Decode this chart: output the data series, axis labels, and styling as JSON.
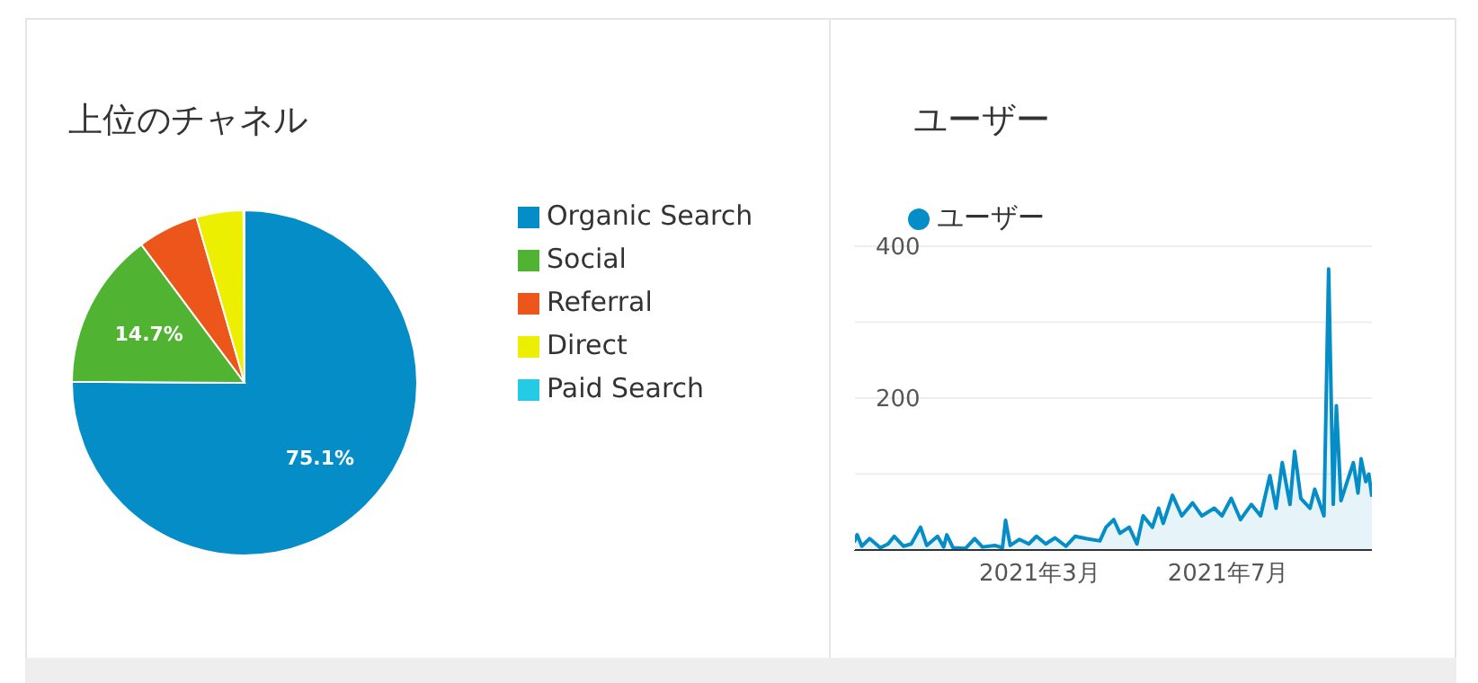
{
  "chart_data": [
    {
      "type": "pie",
      "title": "上位のチャネル",
      "categories": [
        "Organic Search",
        "Social",
        "Referral",
        "Direct",
        "Paid Search"
      ],
      "values": [
        75.1,
        14.7,
        5.7,
        4.4,
        0.1
      ],
      "colors": [
        "#058dc7",
        "#50b432",
        "#ed561b",
        "#edef00",
        "#24cbe5"
      ],
      "value_labels": [
        "75.1%",
        "14.7%",
        null,
        null,
        null
      ],
      "legend": "right"
    },
    {
      "type": "area",
      "title": "ユーザー",
      "x": [
        "2020-11-01",
        "2020-11-03",
        "2020-11-06",
        "2020-11-11",
        "2020-11-18",
        "2020-11-23",
        "2020-11-27",
        "2020-12-03",
        "2020-12-08",
        "2020-12-14",
        "2020-12-18",
        "2020-12-25",
        "2020-12-29",
        "2020-12-31",
        "2021-01-04",
        "2021-01-12",
        "2021-01-18",
        "2021-01-23",
        "2021-01-31",
        "2021-02-05",
        "2021-02-07",
        "2021-02-10",
        "2021-02-16",
        "2021-02-22",
        "2021-02-27",
        "2021-03-05",
        "2021-03-11",
        "2021-03-18",
        "2021-03-24",
        "2021-03-31",
        "2021-04-09",
        "2021-04-13",
        "2021-04-18",
        "2021-04-22",
        "2021-04-28",
        "2021-05-03",
        "2021-05-07",
        "2021-05-13",
        "2021-05-17",
        "2021-05-20",
        "2021-05-26",
        "2021-06-01",
        "2021-06-08",
        "2021-06-14",
        "2021-06-22",
        "2021-06-27",
        "2021-07-03",
        "2021-07-09",
        "2021-07-16",
        "2021-07-22",
        "2021-07-28",
        "2021-08-01",
        "2021-08-05",
        "2021-08-10",
        "2021-08-13",
        "2021-08-17",
        "2021-08-23",
        "2021-08-26",
        "2021-09-01",
        "2021-09-04",
        "2021-09-07",
        "2021-09-09",
        "2021-09-12",
        "2021-09-16",
        "2021-09-20",
        "2021-09-23",
        "2021-09-25",
        "2021-09-28",
        "2021-09-30",
        "2021-10-02"
      ],
      "series": [
        {
          "name": "ユーザー",
          "color": "#058dc7",
          "values": [
            10,
            20,
            5,
            15,
            3,
            8,
            18,
            5,
            8,
            30,
            6,
            18,
            4,
            20,
            3,
            2,
            15,
            4,
            6,
            3,
            39,
            6,
            14,
            8,
            18,
            8,
            16,
            5,
            18,
            15,
            12,
            30,
            40,
            22,
            30,
            8,
            45,
            30,
            55,
            35,
            72,
            45,
            62,
            45,
            55,
            45,
            68,
            40,
            60,
            45,
            98,
            55,
            115,
            60,
            130,
            68,
            55,
            80,
            45,
            370,
            60,
            190,
            65,
            90,
            115,
            75,
            120,
            90,
            100,
            70
          ]
        }
      ],
      "xlim": [
        "2020-11-01",
        "2021-10-02"
      ],
      "xticks": [
        {
          "value": "2021-03-01",
          "label": "2021年3月"
        },
        {
          "value": "2021-07-01",
          "label": "2021年7月"
        }
      ],
      "ylim": [
        0,
        400
      ],
      "yticks": [
        {
          "value": 0,
          "label": null
        },
        {
          "value": 100,
          "label": null
        },
        200,
        {
          "value": 300,
          "label": null
        },
        400
      ],
      "grid": "y",
      "legend": "top left"
    }
  ]
}
